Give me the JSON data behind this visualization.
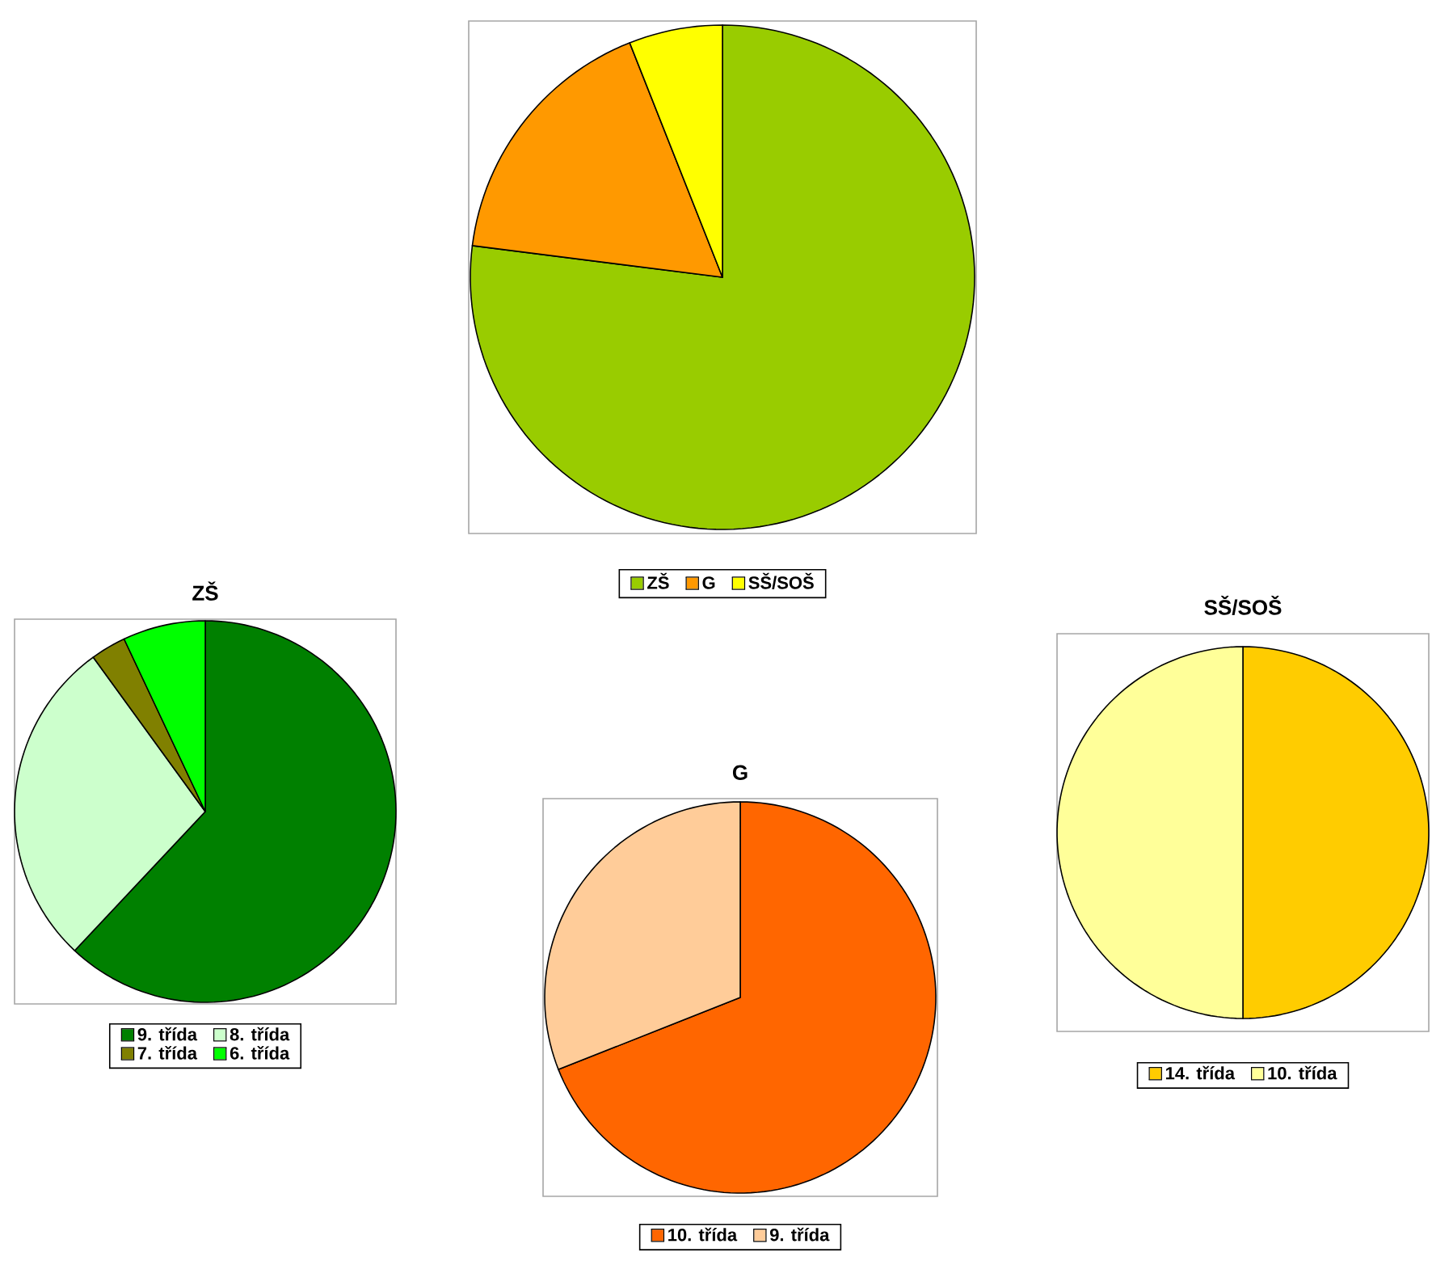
{
  "chart_data": [
    {
      "type": "pie",
      "categories": [
        "ZŠ",
        "G",
        "SŠ/SOŠ"
      ],
      "values": [
        77,
        17,
        6
      ],
      "colors": [
        "#99cc00",
        "#ff9900",
        "#ffff00"
      ],
      "legend": "bottom"
    },
    {
      "type": "pie",
      "title": "ZŠ",
      "categories": [
        "9. třída",
        "8. třída",
        "7. třída",
        "6. třída"
      ],
      "values": [
        62,
        28,
        3,
        7
      ],
      "colors": [
        "#008000",
        "#ccffcc",
        "#808000",
        "#00ff00"
      ],
      "legend": "bottom"
    },
    {
      "type": "pie",
      "title": "G",
      "categories": [
        "10. třída",
        "9. třída"
      ],
      "values": [
        69,
        31
      ],
      "colors": [
        "#ff6600",
        "#ffcc99"
      ],
      "legend": "bottom"
    },
    {
      "type": "pie",
      "title": "SŠ/SOŠ",
      "categories": [
        "14. třída",
        "10. třída"
      ],
      "values": [
        50,
        50
      ],
      "colors": [
        "#ffcc00",
        "#ffff99"
      ],
      "legend": "bottom"
    }
  ]
}
